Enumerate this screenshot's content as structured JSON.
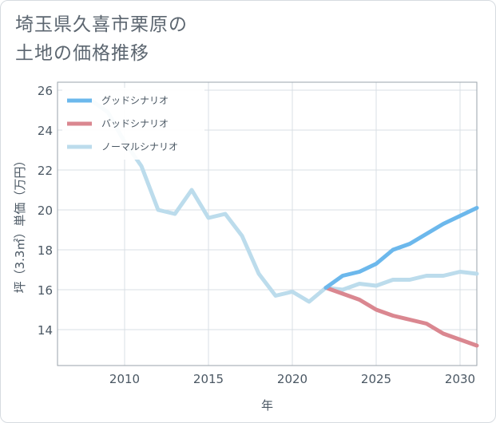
{
  "title": {
    "line1": "埼玉県久喜市栗原の",
    "line2": "土地の価格推移"
  },
  "chart_data": {
    "type": "line",
    "title": "埼玉県久喜市栗原の土地の価格推移",
    "xlabel": "年",
    "ylabel": "坪（3.3㎡）単価（万円）",
    "xlim": [
      2006,
      2031
    ],
    "ylim": [
      12.2,
      26.4
    ],
    "xticks": [
      2010,
      2015,
      2020,
      2025,
      2030
    ],
    "yticks": [
      14,
      16,
      18,
      20,
      22,
      24,
      26
    ],
    "grid": true,
    "legend_position": "top-left",
    "series": [
      {
        "name": "グッドシナリオ",
        "color": "#6cb8ec",
        "x": [
          2022,
          2023,
          2024,
          2025,
          2026,
          2027,
          2028,
          2029,
          2030,
          2031
        ],
        "y": [
          16.1,
          16.7,
          16.9,
          17.3,
          18.0,
          18.3,
          18.8,
          19.3,
          19.7,
          20.1
        ]
      },
      {
        "name": "バッドシナリオ",
        "color": "#da8790",
        "x": [
          2022,
          2023,
          2024,
          2025,
          2026,
          2027,
          2028,
          2029,
          2030,
          2031
        ],
        "y": [
          16.1,
          15.8,
          15.5,
          15.0,
          14.7,
          14.5,
          14.3,
          13.8,
          13.5,
          13.2
        ]
      },
      {
        "name": "ノーマルシナリオ",
        "color": "#bcdcec",
        "x": [
          2008,
          2009,
          2010,
          2011,
          2012,
          2013,
          2014,
          2015,
          2016,
          2017,
          2018,
          2019,
          2020,
          2021,
          2022,
          2023,
          2024,
          2025,
          2026,
          2027,
          2028,
          2029,
          2030,
          2031
        ],
        "y": [
          25.5,
          24.9,
          23.4,
          22.2,
          20.0,
          19.8,
          21.0,
          19.6,
          19.8,
          18.7,
          16.8,
          15.7,
          15.9,
          15.4,
          16.1,
          16.0,
          16.3,
          16.2,
          16.5,
          16.5,
          16.7,
          16.7,
          16.9,
          16.8
        ]
      }
    ]
  }
}
